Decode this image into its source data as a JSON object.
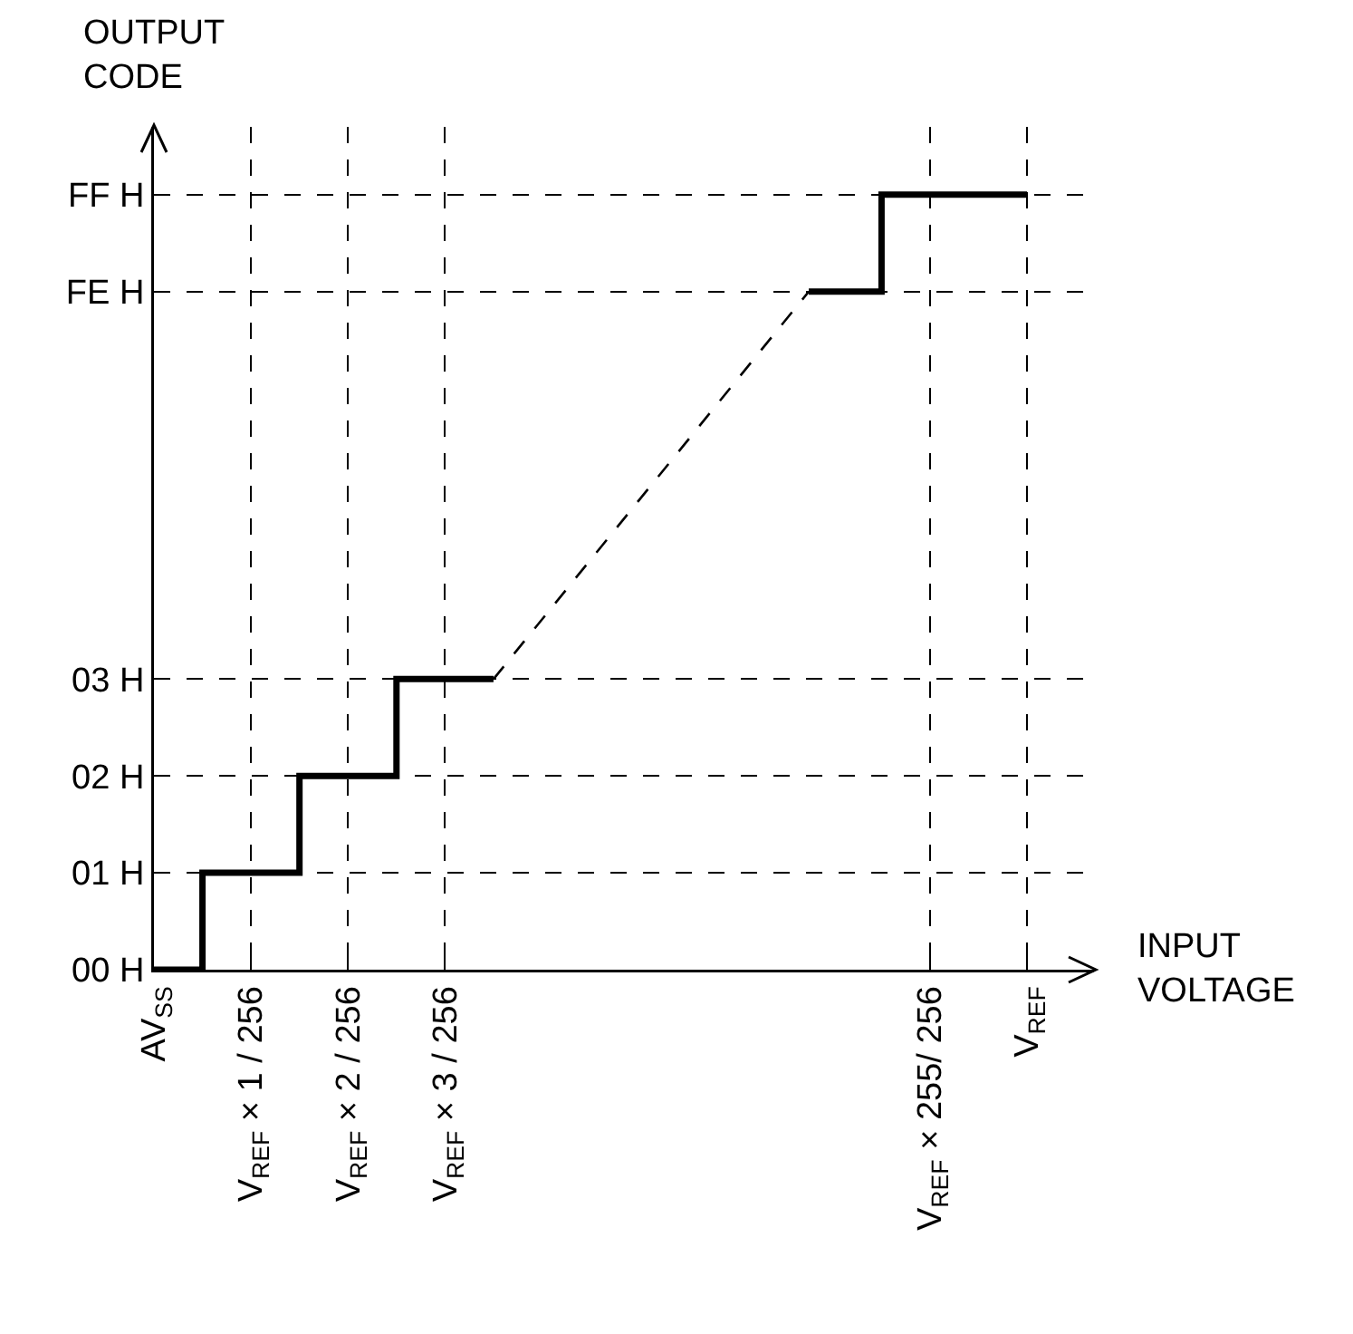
{
  "chart_data": {
    "type": "step",
    "xlabel": "INPUT\nVOLTAGE",
    "ylabel": "OUTPUT\nCODE",
    "categories": [
      "AV$_{SS}$",
      null,
      null,
      null,
      "V$_{REF}$ × 1 / 256",
      null,
      null,
      null,
      "V$_{REF}$ × 2 / 256",
      null,
      null,
      null,
      "V$_{REF}$ × 3 / 256",
      null,
      null,
      null,
      null,
      null,
      null,
      null,
      null,
      null,
      null,
      null,
      null,
      null,
      null,
      null,
      null,
      null,
      null,
      null,
      "V$_{REF}$ × 255/ 256",
      null,
      null,
      null,
      "V$_{REF}$",
      null,
      null
    ],
    "ylim": [
      0,
      8.7
    ],
    "yticks": [
      {
        "value": 0,
        "label": "00 H"
      },
      {
        "value": 1,
        "label": "01 H"
      },
      {
        "value": 2,
        "label": "02 H"
      },
      {
        "value": 3,
        "label": "03 H"
      },
      {
        "value": 7,
        "label": "FE H"
      },
      {
        "value": 8,
        "label": "FF H"
      }
    ],
    "grid": true,
    "series": [
      {
        "color": "#000000",
        "line_style": "solid",
        "values": [
          0,
          null,
          1,
          null,
          null,
          null,
          2,
          null,
          null,
          null,
          3,
          null,
          null,
          null,
          3,
          null,
          null,
          null,
          null,
          null,
          null,
          null,
          null,
          null,
          null,
          null,
          null,
          null,
          null,
          null,
          null,
          null,
          null,
          null,
          null,
          null,
          null,
          null,
          null
        ]
      },
      {
        "type": "line",
        "color": "#000000",
        "line_style": "dashed",
        "values": [
          null,
          null,
          null,
          null,
          null,
          null,
          null,
          null,
          null,
          null,
          null,
          null,
          null,
          null,
          3,
          null,
          null,
          null,
          null,
          null,
          null,
          null,
          null,
          null,
          null,
          null,
          null,
          7,
          null,
          null,
          null,
          null,
          null,
          null,
          null,
          null,
          null,
          null,
          null
        ]
      },
      {
        "color": "#000000",
        "line_style": "solid",
        "values": [
          null,
          null,
          null,
          null,
          null,
          null,
          null,
          null,
          null,
          null,
          null,
          null,
          null,
          null,
          null,
          null,
          null,
          null,
          null,
          null,
          null,
          null,
          null,
          null,
          null,
          null,
          null,
          7,
          null,
          null,
          8,
          null,
          null,
          null,
          null,
          null,
          8,
          null,
          null
        ]
      }
    ]
  }
}
